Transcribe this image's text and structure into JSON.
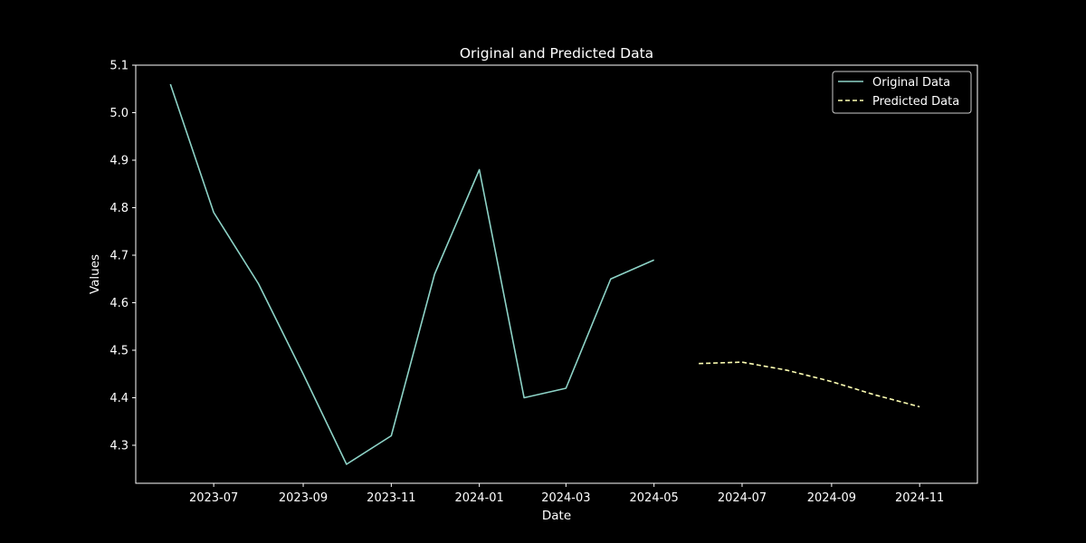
{
  "chart_data": {
    "type": "line",
    "title": "Original and Predicted Data",
    "xlabel": "Date",
    "ylabel": "Values",
    "xlim": [
      "2023-05-08",
      "2024-12-11"
    ],
    "ylim": [
      4.22,
      5.1
    ],
    "x_ticks": [
      "2023-07",
      "2023-09",
      "2023-11",
      "2024-01",
      "2024-03",
      "2024-05",
      "2024-07",
      "2024-09",
      "2024-11"
    ],
    "y_ticks": [
      "4.3",
      "4.4",
      "4.5",
      "4.6",
      "4.7",
      "4.8",
      "4.9",
      "5.0",
      "5.1"
    ],
    "grid": false,
    "legend_position": "top-right",
    "series": [
      {
        "name": "Original Data",
        "color": "#8dd3c7",
        "style": "solid",
        "points": [
          {
            "x": "2023-06-01",
            "y": 5.06
          },
          {
            "x": "2023-07-01",
            "y": 4.79
          },
          {
            "x": "2023-08-01",
            "y": 4.64
          },
          {
            "x": "2023-09-01",
            "y": 4.45
          },
          {
            "x": "2023-10-01",
            "y": 4.26
          },
          {
            "x": "2023-11-01",
            "y": 4.32
          },
          {
            "x": "2023-12-01",
            "y": 4.66
          },
          {
            "x": "2024-01-01",
            "y": 4.88
          },
          {
            "x": "2024-02-01",
            "y": 4.4
          },
          {
            "x": "2024-03-01",
            "y": 4.42
          },
          {
            "x": "2024-04-01",
            "y": 4.65
          },
          {
            "x": "2024-05-01",
            "y": 4.69
          }
        ]
      },
      {
        "name": "Predicted Data",
        "color": "#feffb3",
        "style": "dashed",
        "points": [
          {
            "x": "2024-06-01",
            "y": 4.472
          },
          {
            "x": "2024-07-01",
            "y": 4.475
          },
          {
            "x": "2024-08-01",
            "y": 4.458
          },
          {
            "x": "2024-09-01",
            "y": 4.434
          },
          {
            "x": "2024-10-01",
            "y": 4.406
          },
          {
            "x": "2024-11-01",
            "y": 4.381
          }
        ]
      }
    ]
  }
}
